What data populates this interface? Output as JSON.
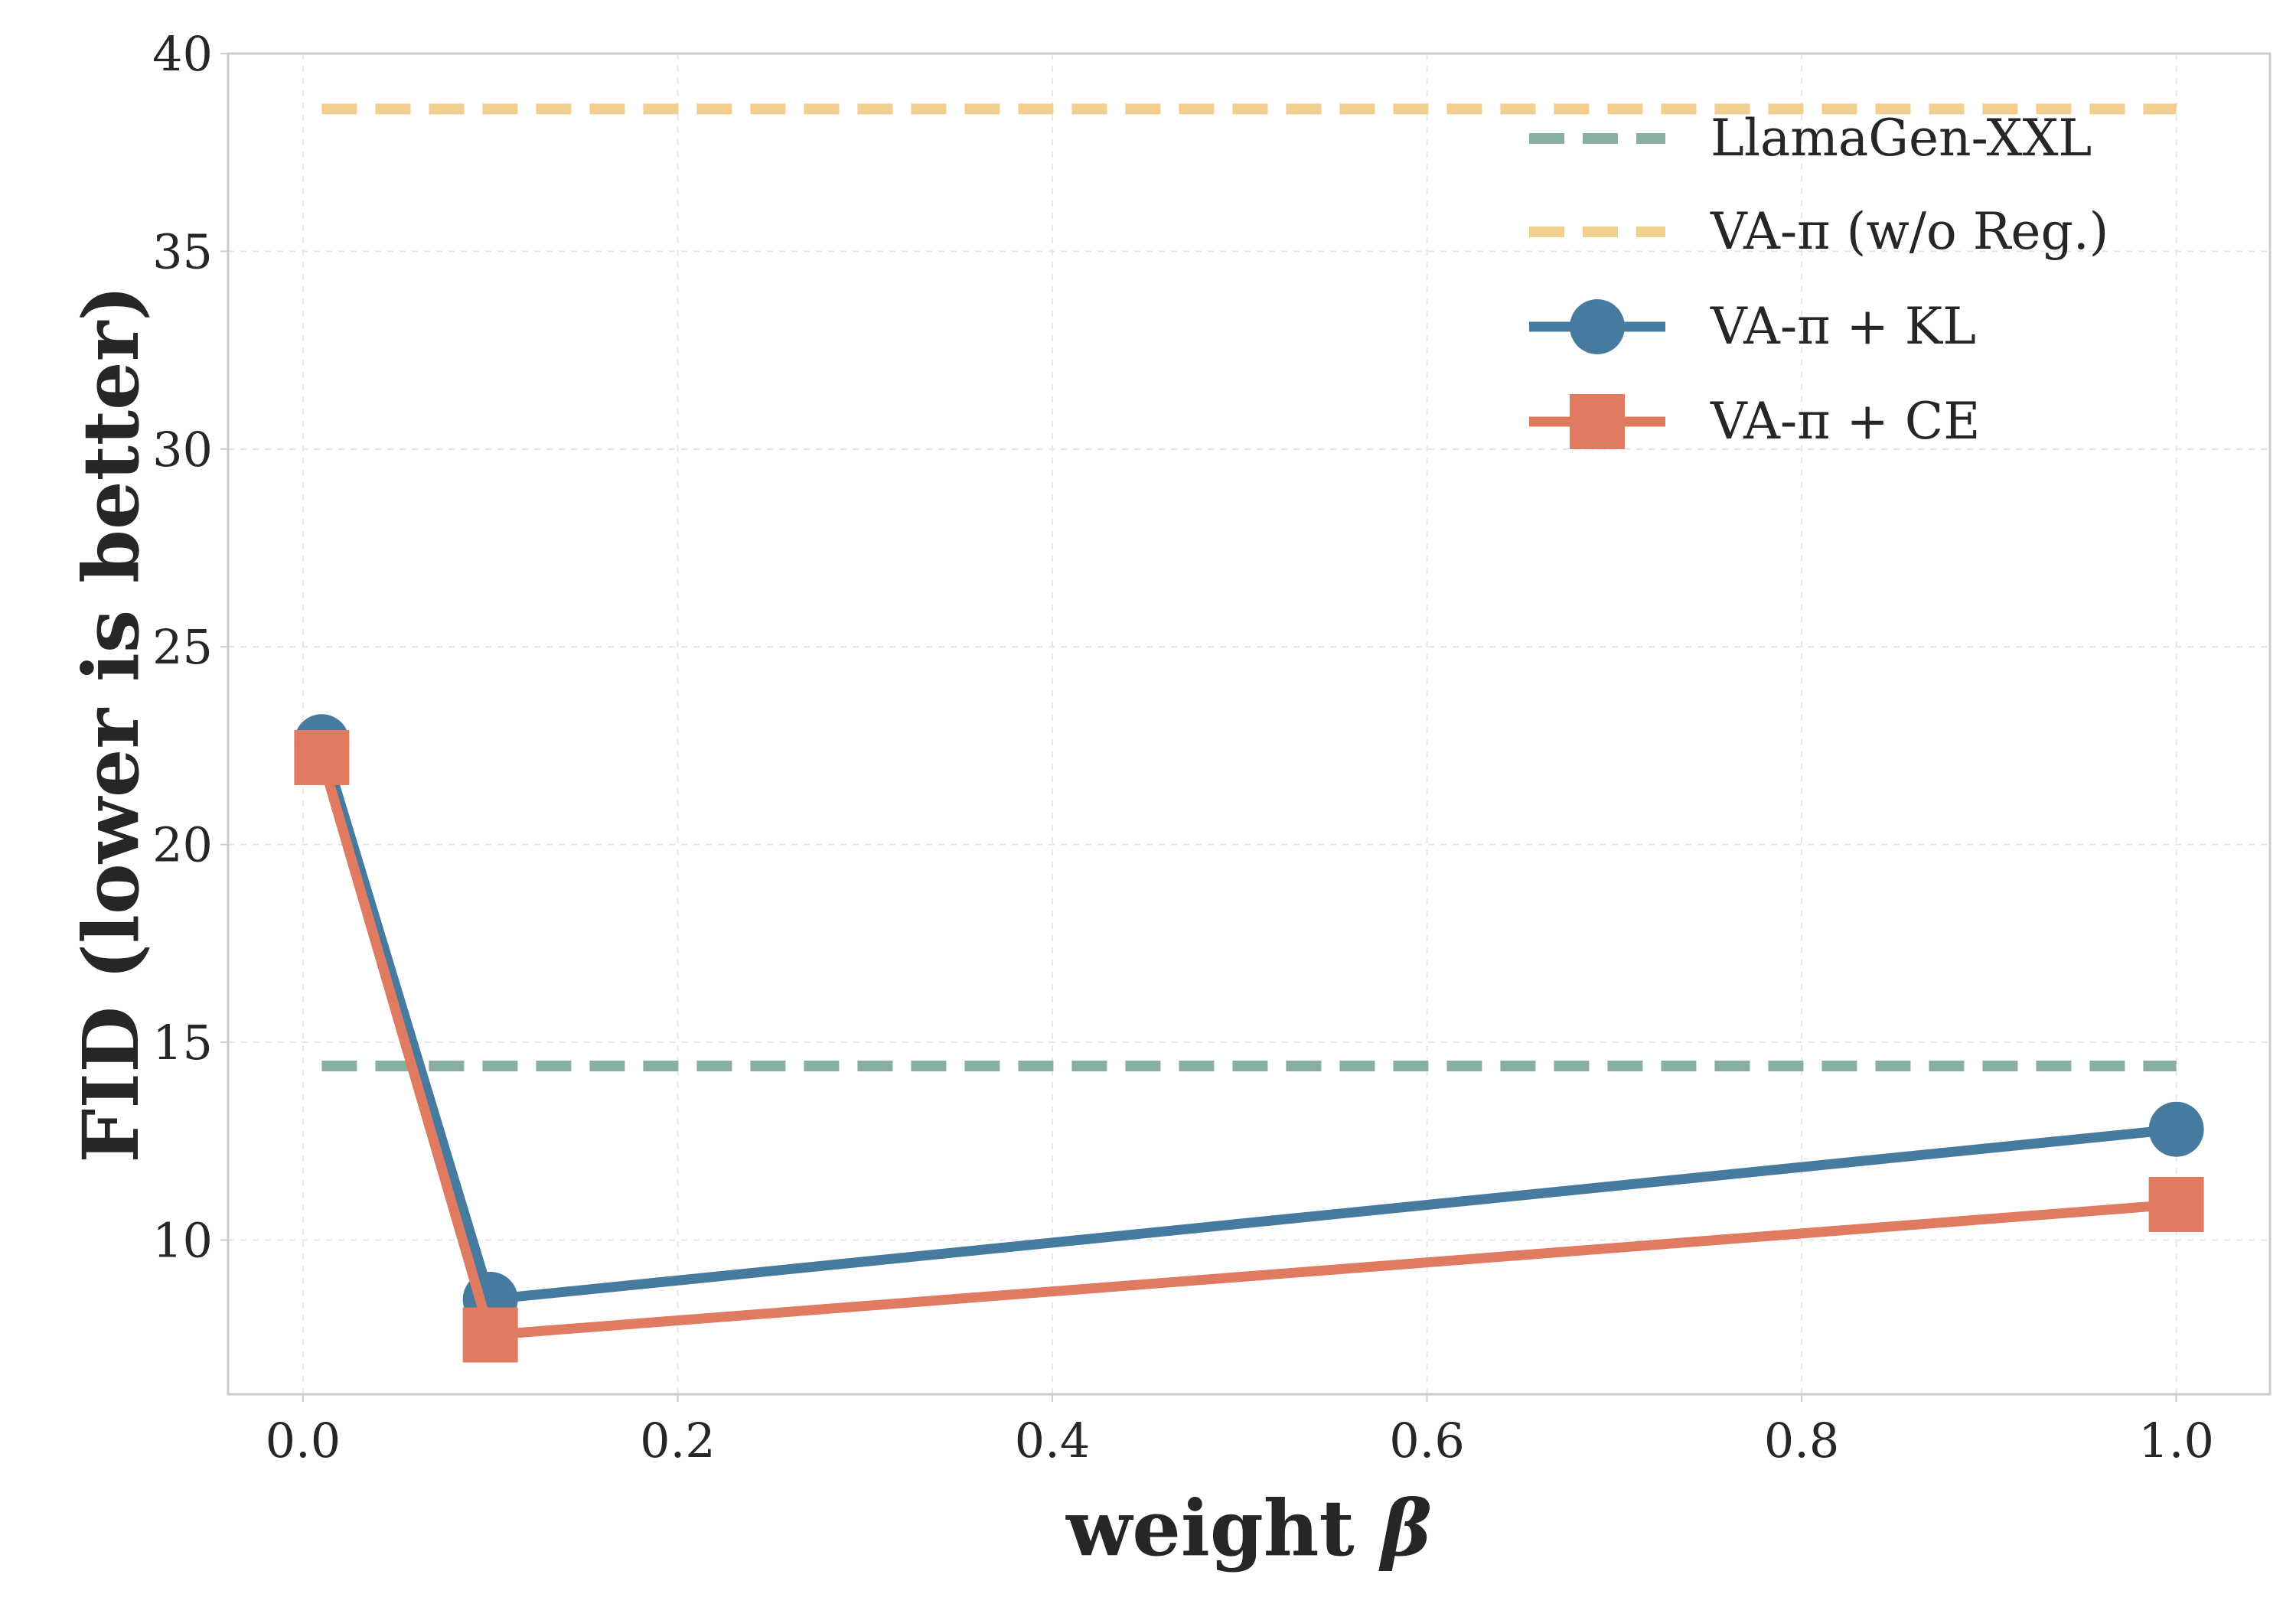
{
  "chart_data": {
    "type": "line",
    "title": "",
    "xlabel": "weight β",
    "ylabel": "FID (lower is better)",
    "xlim": [
      -0.04,
      1.05
    ],
    "ylim": [
      6.1,
      40
    ],
    "xticks": [
      0.0,
      0.2,
      0.4,
      0.6,
      0.8,
      1.0
    ],
    "xtick_labels": [
      "0.0",
      "0.2",
      "0.4",
      "0.6",
      "0.8",
      "1.0"
    ],
    "yticks": [
      10,
      15,
      20,
      25,
      30,
      35,
      40
    ],
    "ytick_labels": [
      "10",
      "15",
      "20",
      "25",
      "30",
      "35",
      "40"
    ],
    "grid": true,
    "legend_position": "top-right",
    "series": [
      {
        "name": "VA-π + KL",
        "style": "solid",
        "marker": "circle",
        "color": "#467b9f",
        "x": [
          0.01,
          0.1,
          1.0
        ],
        "y": [
          22.6,
          8.5,
          12.8
        ]
      },
      {
        "name": "VA-π + CE",
        "style": "solid",
        "marker": "square",
        "color": "#e07b61",
        "x": [
          0.01,
          0.1,
          1.0
        ],
        "y": [
          22.2,
          7.6,
          10.9
        ]
      }
    ],
    "reference_lines": [
      {
        "name": "LlamaGen-XXL",
        "style": "dashed",
        "color": "#88b09e",
        "y": 14.4,
        "x_start": 0.01,
        "x_end": 1.0
      },
      {
        "name": "VA-π (w/o Reg.)",
        "style": "dashed",
        "color": "#f2cf8f",
        "y": 38.6,
        "x_start": 0.01,
        "x_end": 1.0
      }
    ],
    "legend": [
      {
        "label": "LlamaGen-XXL",
        "kind": "dashed",
        "color": "#88b09e"
      },
      {
        "label": "VA-π (w/o Reg.)",
        "kind": "dashed",
        "color": "#f2cf8f"
      },
      {
        "label": "VA-π + KL",
        "kind": "circle",
        "color": "#467b9f"
      },
      {
        "label": "VA-π + CE",
        "kind": "square",
        "color": "#e07b61"
      }
    ]
  }
}
